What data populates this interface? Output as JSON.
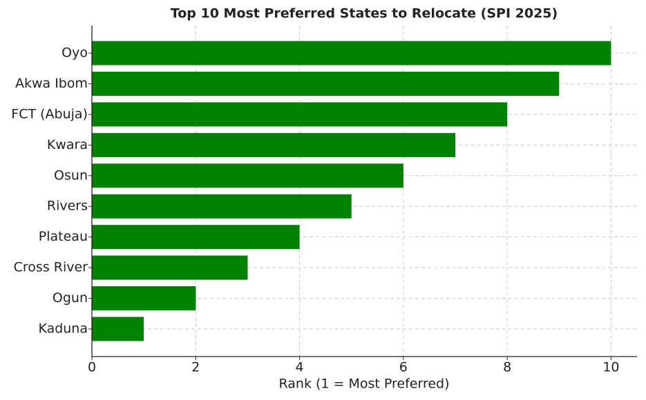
{
  "chart_data": {
    "type": "barh",
    "title": "Top 10 Most Preferred States to Relocate (SPI 2025)",
    "xlabel": "Rank (1 = Most Preferred)",
    "categories": [
      "Oyo",
      "Akwa Ibom",
      "FCT (Abuja)",
      "Kwara",
      "Osun",
      "Rivers",
      "Plateau",
      "Cross River",
      "Ogun",
      "Kaduna"
    ],
    "values": [
      10,
      9,
      8,
      7,
      6,
      5,
      4,
      3,
      2,
      1
    ],
    "color": "#008000",
    "xlim": [
      0,
      10.5
    ],
    "xticks": [
      0,
      2,
      4,
      6,
      8,
      10
    ],
    "grid": true
  }
}
